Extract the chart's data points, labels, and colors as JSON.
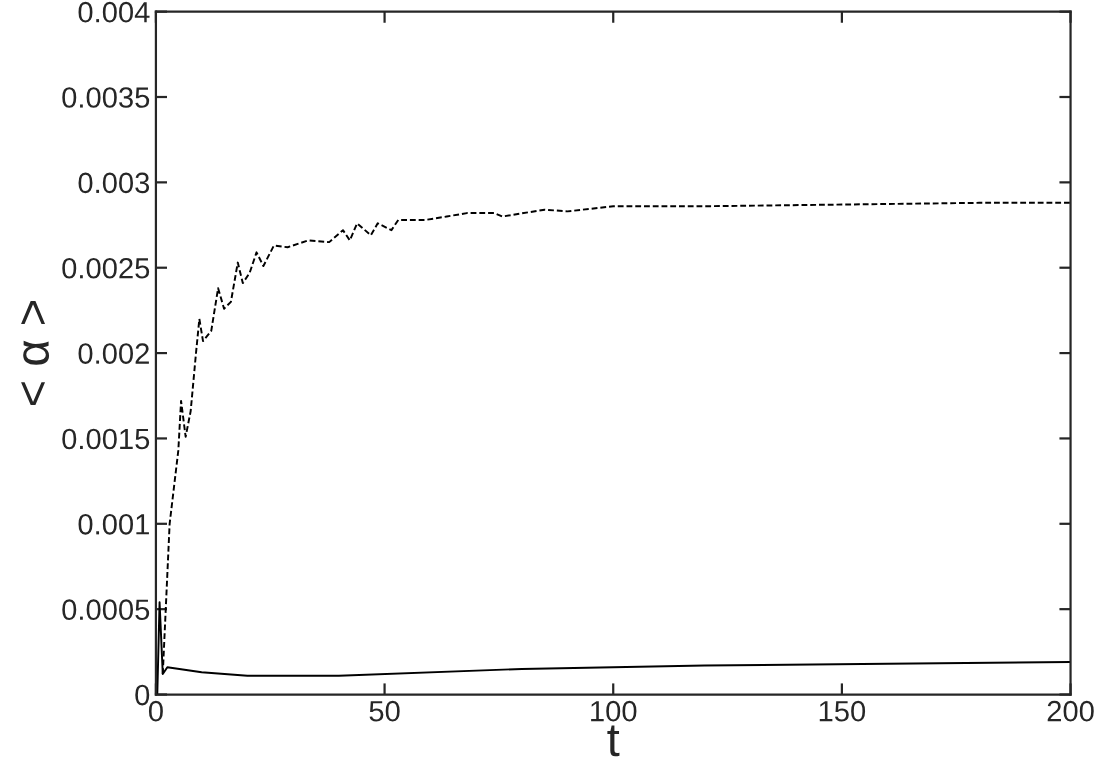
{
  "chart_data": {
    "type": "line",
    "xlabel": "t",
    "ylabel": "< α >",
    "xlim": [
      0,
      200
    ],
    "ylim": [
      0,
      0.004
    ],
    "xticks": [
      0,
      50,
      100,
      150,
      200
    ],
    "yticks": [
      0,
      0.0005,
      0.001,
      0.0015,
      0.002,
      0.0025,
      0.003,
      0.0035,
      0.004
    ],
    "grid": false,
    "legend": false,
    "marker": "none",
    "series": [
      {
        "color": "#000000",
        "line_style": "dashed",
        "x": [
          1.5,
          3.0,
          4.9,
          5.5,
          6.5,
          7.6,
          8.8,
          9.5,
          10.3,
          12.1,
          13.6,
          14.9,
          16.4,
          17.9,
          19.0,
          20.5,
          22.0,
          23.5,
          25.8,
          28.8,
          33.3,
          37.9,
          40.9,
          42.4,
          44,
          47,
          48.5,
          51.5,
          53,
          59,
          63.6,
          68,
          74,
          75.8,
          85,
          90,
          100,
          120,
          150,
          180,
          200
        ],
        "values": [
          0.00012,
          0.001,
          0.00143,
          0.00172,
          0.00151,
          0.00166,
          0.00201,
          0.0022,
          0.00207,
          0.00213,
          0.00238,
          0.00226,
          0.0023,
          0.00253,
          0.00241,
          0.00247,
          0.00259,
          0.00251,
          0.00263,
          0.00262,
          0.00266,
          0.00265,
          0.00272,
          0.00266,
          0.00276,
          0.00269,
          0.00276,
          0.00272,
          0.00278,
          0.00278,
          0.0028,
          0.00282,
          0.00282,
          0.0028,
          0.00284,
          0.00283,
          0.00286,
          0.00286,
          0.00287,
          0.00288,
          0.00288
        ]
      },
      {
        "color": "#000000",
        "line_style": "solid",
        "x": [
          0.3,
          0.8,
          1.5,
          2.5,
          10,
          20,
          40,
          80,
          120,
          160,
          200
        ],
        "values": [
          0.0,
          0.00054,
          0.00012,
          0.00016,
          0.00013,
          0.00011,
          0.00011,
          0.00015,
          0.00017,
          0.00018,
          0.00019
        ]
      }
    ]
  }
}
